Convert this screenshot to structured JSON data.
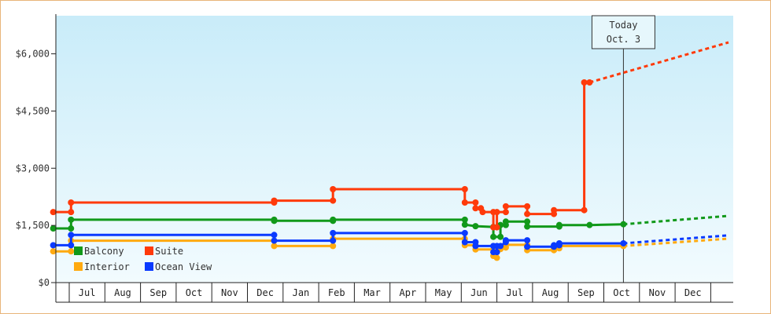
{
  "chart_data": {
    "type": "line",
    "title": "",
    "xlabel": "",
    "ylabel": "",
    "ylim": [
      0,
      7000
    ],
    "y_ticks": [
      {
        "value": 0,
        "label": "$0"
      },
      {
        "value": 1500,
        "label": "$1,500"
      },
      {
        "value": 3000,
        "label": "$3,000"
      },
      {
        "value": 4500,
        "label": "$4,500"
      },
      {
        "value": 6000,
        "label": "$6,000"
      }
    ],
    "x_months": [
      "Jul",
      "Aug",
      "Sep",
      "Oct",
      "Nov",
      "Dec",
      "Jan",
      "Feb",
      "Mar",
      "Apr",
      "May",
      "Jun",
      "Jul",
      "Aug",
      "Sep",
      "Oct",
      "Nov",
      "Dec"
    ],
    "grid": false,
    "legend_position": "bottom-left",
    "today_marker": {
      "line1": "Today",
      "line2": "Oct. 3",
      "x": 15.55
    },
    "series": [
      {
        "name": "Balcony",
        "color": "#11991a",
        "points": [
          [
            -0.45,
            1420
          ],
          [
            -0.35,
            1420
          ],
          [
            0.05,
            1420
          ],
          [
            0.05,
            1650
          ],
          [
            5.75,
            1650
          ],
          [
            5.75,
            1620
          ],
          [
            7.4,
            1620
          ],
          [
            7.4,
            1650
          ],
          [
            11.1,
            1650
          ],
          [
            11.1,
            1520
          ],
          [
            11.4,
            1480
          ],
          [
            11.9,
            1460
          ],
          [
            11.9,
            1200
          ],
          [
            12.1,
            1200
          ],
          [
            12.1,
            1510
          ],
          [
            12.25,
            1510
          ],
          [
            12.25,
            1600
          ],
          [
            12.7,
            1600
          ],
          [
            12.85,
            1600
          ],
          [
            12.85,
            1470
          ],
          [
            13.75,
            1470
          ],
          [
            13.75,
            1510
          ],
          [
            14.6,
            1510
          ],
          [
            15.55,
            1530
          ]
        ],
        "projection": [
          [
            15.55,
            1530
          ],
          [
            18.5,
            1750
          ]
        ]
      },
      {
        "name": "Suite",
        "color": "#ff3a0a",
        "points": [
          [
            -0.45,
            1850
          ],
          [
            -0.35,
            1850
          ],
          [
            0.05,
            1850
          ],
          [
            0.05,
            2100
          ],
          [
            5.75,
            2100
          ],
          [
            5.75,
            2150
          ],
          [
            7.4,
            2150
          ],
          [
            7.4,
            2450
          ],
          [
            11.1,
            2450
          ],
          [
            11.1,
            2100
          ],
          [
            11.4,
            2100
          ],
          [
            11.4,
            1950
          ],
          [
            11.55,
            1950
          ],
          [
            11.6,
            1850
          ],
          [
            11.75,
            1850
          ],
          [
            11.9,
            1850
          ],
          [
            11.9,
            1450
          ],
          [
            12.0,
            1450
          ],
          [
            12.0,
            1850
          ],
          [
            12.25,
            1850
          ],
          [
            12.25,
            2000
          ],
          [
            12.85,
            2000
          ],
          [
            12.85,
            1800
          ],
          [
            13.6,
            1800
          ],
          [
            13.6,
            1900
          ],
          [
            14.45,
            1900
          ],
          [
            14.45,
            5250
          ],
          [
            14.6,
            5250
          ]
        ],
        "projection": [
          [
            14.6,
            5250
          ],
          [
            18.5,
            6300
          ]
        ]
      },
      {
        "name": "Interior",
        "color": "#ffaa10",
        "points": [
          [
            -0.45,
            820
          ],
          [
            -0.35,
            820
          ],
          [
            0.05,
            820
          ],
          [
            0.05,
            1100
          ],
          [
            5.75,
            1100
          ],
          [
            5.75,
            960
          ],
          [
            7.4,
            960
          ],
          [
            7.4,
            1150
          ],
          [
            11.1,
            1150
          ],
          [
            11.1,
            980
          ],
          [
            11.4,
            980
          ],
          [
            11.4,
            870
          ],
          [
            11.9,
            870
          ],
          [
            11.9,
            700
          ],
          [
            12.0,
            650
          ],
          [
            12.0,
            880
          ],
          [
            12.1,
            880
          ],
          [
            12.25,
            920
          ],
          [
            12.25,
            990
          ],
          [
            12.85,
            990
          ],
          [
            12.85,
            850
          ],
          [
            13.6,
            850
          ],
          [
            13.6,
            900
          ],
          [
            13.75,
            900
          ],
          [
            13.75,
            960
          ],
          [
            14.6,
            960
          ],
          [
            15.55,
            960
          ]
        ],
        "projection": [
          [
            15.55,
            960
          ],
          [
            18.5,
            1150
          ]
        ]
      },
      {
        "name": "Ocean View",
        "color": "#0a3aff",
        "points": [
          [
            -0.45,
            980
          ],
          [
            -0.35,
            980
          ],
          [
            0.05,
            980
          ],
          [
            0.05,
            1250
          ],
          [
            5.75,
            1250
          ],
          [
            5.75,
            1100
          ],
          [
            7.4,
            1100
          ],
          [
            7.4,
            1300
          ],
          [
            11.1,
            1300
          ],
          [
            11.1,
            1060
          ],
          [
            11.4,
            1060
          ],
          [
            11.4,
            960
          ],
          [
            11.9,
            960
          ],
          [
            11.9,
            800
          ],
          [
            12.0,
            800
          ],
          [
            12.0,
            960
          ],
          [
            12.1,
            960
          ],
          [
            12.25,
            1060
          ],
          [
            12.25,
            1110
          ],
          [
            12.85,
            1110
          ],
          [
            12.85,
            940
          ],
          [
            13.6,
            940
          ],
          [
            13.6,
            980
          ],
          [
            13.75,
            980
          ],
          [
            13.75,
            1030
          ],
          [
            14.6,
            1030
          ],
          [
            15.55,
            1030
          ]
        ],
        "projection": [
          [
            15.55,
            1030
          ],
          [
            18.5,
            1240
          ]
        ]
      }
    ],
    "legend": [
      {
        "name": "Balcony",
        "color": "#11991a"
      },
      {
        "name": "Suite",
        "color": "#ff3a0a"
      },
      {
        "name": "Interior",
        "color": "#ffaa10"
      },
      {
        "name": "Ocean View",
        "color": "#0a3aff"
      }
    ]
  }
}
